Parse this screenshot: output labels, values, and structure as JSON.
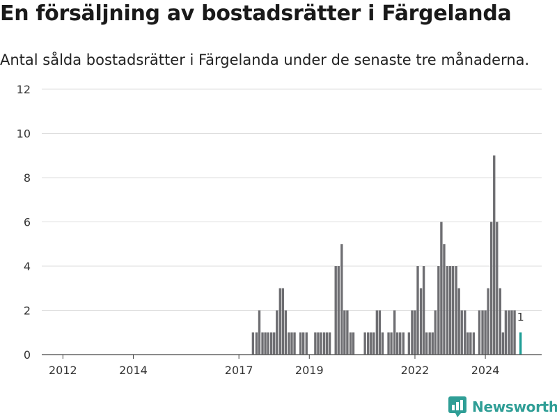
{
  "title": "En försäljning av bostadsrätter i Färgelanda",
  "subtitle": "Antal sålda bostadsrätter i Färgelanda under de senaste tre månaderna.",
  "brand": {
    "name": "Newsworthy"
  },
  "colors": {
    "bar": "#6e6e72",
    "highlight": "#1f9e96",
    "grid": "#dddddd",
    "brand": "#2f9e96"
  },
  "chart_data": {
    "type": "bar",
    "title": "En försäljning av bostadsrätter i Färgelanda",
    "subtitle": "Antal sålda bostadsrätter i Färgelanda under de senaste tre månaderna.",
    "xlabel": "",
    "ylabel": "",
    "ylim": [
      0,
      12
    ],
    "yticks": [
      0,
      2,
      4,
      6,
      8,
      10,
      12
    ],
    "xticks": [
      2012,
      2014,
      2017,
      2019,
      2022,
      2024
    ],
    "xlim": [
      2011.4,
      2025.6
    ],
    "grid": true,
    "legend": "none",
    "series": [
      {
        "x": [
          2017.4,
          2017.5,
          2017.58,
          2017.67,
          2017.75,
          2017.83,
          2017.92,
          2018.0,
          2018.08,
          2018.17,
          2018.25,
          2018.33,
          2018.42,
          2018.5,
          2018.58
        ],
        "values": [
          1,
          1,
          2,
          1,
          1,
          1,
          1,
          1,
          2,
          3,
          3,
          2,
          1,
          1,
          1
        ]
      },
      {
        "x": [
          2018.75,
          2018.83,
          2018.92
        ],
        "values": [
          1,
          1,
          1
        ]
      },
      {
        "x": [
          2019.17,
          2019.25,
          2019.33,
          2019.42,
          2019.5,
          2019.58,
          2019.75,
          2019.83,
          2019.92,
          2020.0,
          2020.08,
          2020.17,
          2020.25
        ],
        "values": [
          1,
          1,
          1,
          1,
          1,
          1,
          4,
          4,
          5,
          2,
          2,
          1,
          1
        ]
      },
      {
        "x": [
          2020.58,
          2020.67,
          2020.75,
          2020.83,
          2020.92,
          2021.0,
          2021.08,
          2021.25,
          2021.33,
          2021.42,
          2021.5,
          2021.58,
          2021.67
        ],
        "values": [
          1,
          1,
          1,
          1,
          2,
          2,
          1,
          1,
          1,
          2,
          1,
          1,
          1
        ]
      },
      {
        "x": [
          2021.83,
          2021.92,
          2022.0,
          2022.08,
          2022.17,
          2022.25,
          2022.33,
          2022.42,
          2022.5,
          2022.58,
          2022.67,
          2022.75,
          2022.83,
          2022.92,
          2023.0,
          2023.08,
          2023.17,
          2023.25,
          2023.33,
          2023.42,
          2023.5,
          2023.58,
          2023.67
        ],
        "values": [
          1,
          2,
          2,
          4,
          3,
          4,
          1,
          1,
          1,
          2,
          4,
          6,
          5,
          4,
          4,
          4,
          4,
          3,
          2,
          2,
          1,
          1,
          1
        ]
      },
      {
        "x": [
          2023.83,
          2023.92,
          2024.0,
          2024.08,
          2024.17,
          2024.25,
          2024.33,
          2024.42,
          2024.5,
          2024.58,
          2024.67,
          2024.75,
          2024.83
        ],
        "values": [
          2,
          2,
          2,
          3,
          6,
          9,
          6,
          3,
          1,
          2,
          2,
          2,
          2
        ]
      }
    ],
    "highlight": {
      "x": 2025.0,
      "value": 1,
      "label": "1"
    }
  }
}
